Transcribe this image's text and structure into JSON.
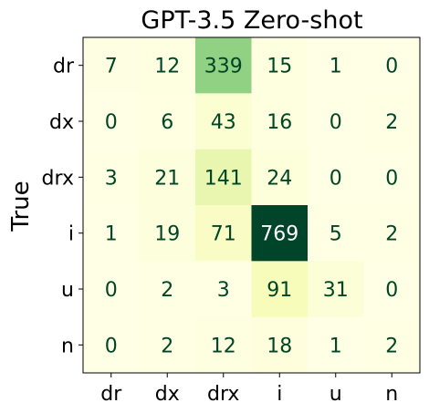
{
  "chart_data": {
    "type": "heatmap",
    "title": "GPT-3.5 Zero-shot",
    "ylabel": "True",
    "xlabel": "",
    "x_categories": [
      "dr",
      "dx",
      "drx",
      "i",
      "u",
      "n"
    ],
    "y_categories": [
      "dr",
      "dx",
      "drx",
      "i",
      "u",
      "n"
    ],
    "values": [
      [
        7,
        12,
        339,
        15,
        1,
        0
      ],
      [
        0,
        6,
        43,
        16,
        0,
        2
      ],
      [
        3,
        21,
        141,
        24,
        0,
        0
      ],
      [
        1,
        19,
        71,
        769,
        5,
        2
      ],
      [
        0,
        2,
        3,
        91,
        31,
        0
      ],
      [
        0,
        2,
        12,
        18,
        1,
        2
      ]
    ],
    "colormap": "YlGn",
    "value_range": [
      0,
      769
    ],
    "text_color": "#004525",
    "grid": false
  }
}
